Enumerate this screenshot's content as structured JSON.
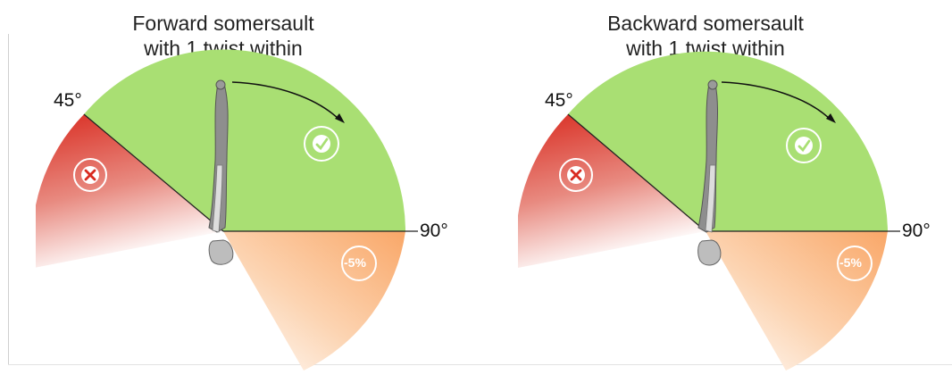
{
  "panels": [
    {
      "title_line1": "Forward somersault",
      "title_line2": "with 1 twist within",
      "angle_45": "45°",
      "angle_90": "90°",
      "deduction": "-5%"
    },
    {
      "title_line1": "Backward somersault",
      "title_line2": "with 1 twist within",
      "angle_45": "45°",
      "angle_90": "90°",
      "deduction": "-5%"
    }
  ],
  "colors": {
    "accepted": "#a9df73",
    "rejected": "#d92b20",
    "deduction": "#f9b278",
    "figure": "#8e8e8e"
  },
  "icons": {
    "accepted": "checkmark-icon",
    "rejected": "cross-icon"
  }
}
